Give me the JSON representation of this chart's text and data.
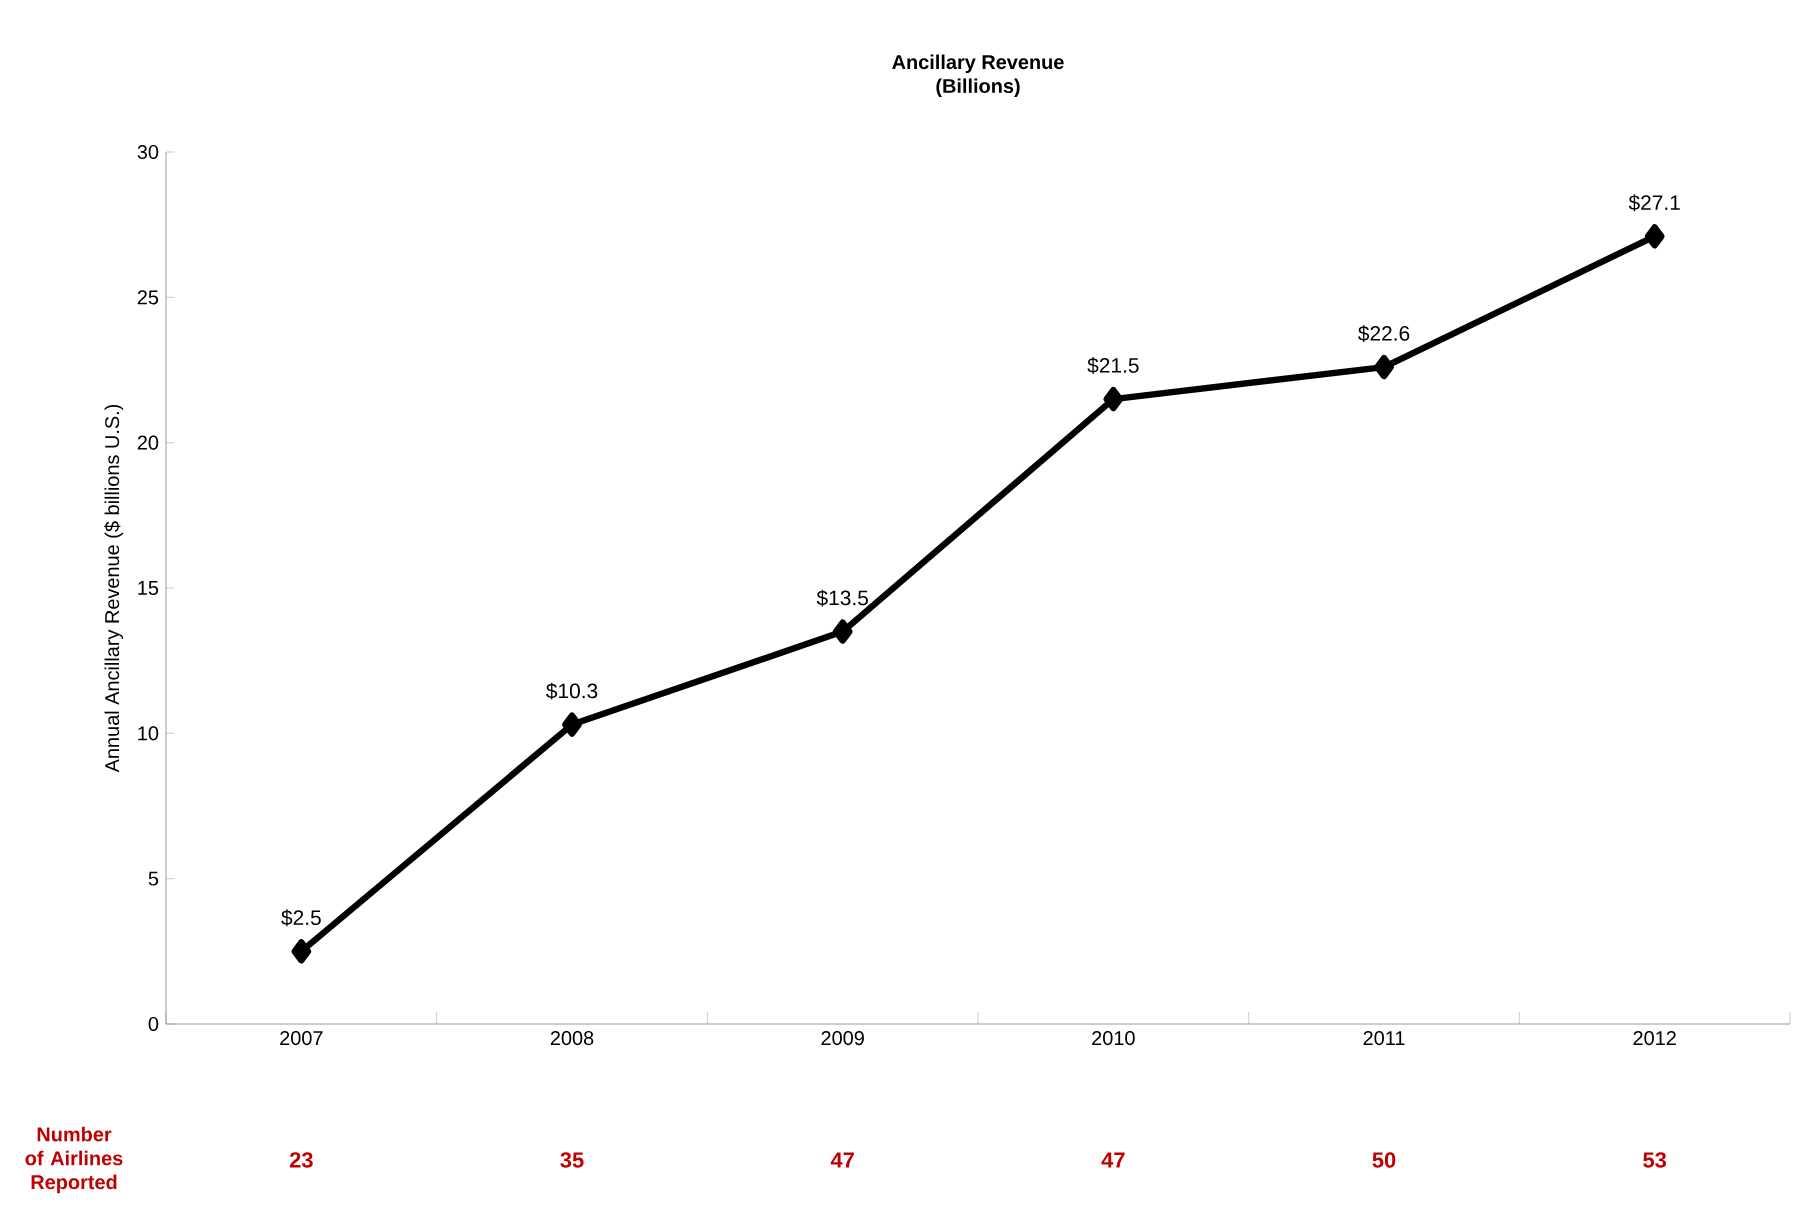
{
  "chart_data": {
    "type": "line",
    "title": "Ancillary Revenue",
    "subtitle": "(Billions)",
    "ylabel": "Annual Ancillary Revenue ($ billions U.S.)",
    "categories": [
      "2007",
      "2008",
      "2009",
      "2010",
      "2011",
      "2012"
    ],
    "series": [
      {
        "color": "#000000",
        "values": [
          2.5,
          10.3,
          13.5,
          21.5,
          22.6,
          27.1
        ],
        "value_labels": [
          "$2.5",
          "$10.3",
          "$13.5",
          "$21.5",
          "$22.6",
          "$27.1"
        ]
      }
    ],
    "ylim": [
      0,
      30
    ],
    "yticks": [
      0,
      5,
      10,
      15,
      20,
      25,
      30
    ],
    "marker": "diamond",
    "line_style": "solid",
    "grid": false,
    "annotations": [
      "Number of Airlines Reported",
      "23",
      "35",
      "47",
      "47",
      "50",
      "53"
    ]
  }
}
